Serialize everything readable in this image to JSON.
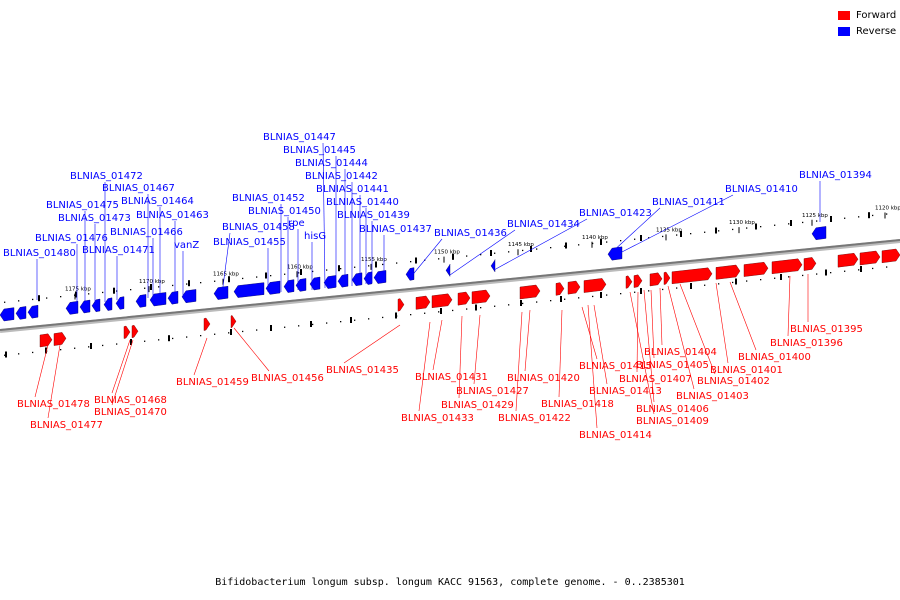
{
  "legend": {
    "forward_label": "Forward",
    "reverse_label": "Reverse",
    "forward_color": "#ff0000",
    "reverse_color": "#0000ff"
  },
  "caption": "Bifidobacterium longum subsp. longum KACC 91563, complete genome. - 0..2385301",
  "ticks": [
    "1175 kbp",
    "1170 kbp",
    "1165 kbp",
    "1160 kbp",
    "1155 kbp",
    "1150 kbp",
    "1145 kbp",
    "1140 kbp",
    "1135 kbp",
    "1130 kbp",
    "1125 kbp",
    "1120 kbp"
  ],
  "reverse_genes": [
    "BLNIAS_01480",
    "BLNIAS_01476",
    "BLNIAS_01475",
    "BLNIAS_01473",
    "BLNIAS_01472",
    "BLNIAS_01471",
    "BLNIAS_01467",
    "BLNIAS_01466",
    "BLNIAS_01464",
    "BLNIAS_01463",
    "vanZ",
    "BLNIAS_01458",
    "BLNIAS_01455",
    "BLNIAS_01452",
    "BLNIAS_01450",
    "rpe",
    "hisG",
    "BLNIAS_01447",
    "BLNIAS_01445",
    "BLNIAS_01444",
    "BLNIAS_01442",
    "BLNIAS_01441",
    "BLNIAS_01440",
    "BLNIAS_01439",
    "BLNIAS_01437",
    "BLNIAS_01436",
    "BLNIAS_01434",
    "BLNIAS_01423",
    "BLNIAS_01411",
    "BLNIAS_01410",
    "BLNIAS_01394"
  ],
  "forward_genes": [
    "BLNIAS_01478",
    "BLNIAS_01477",
    "BLNIAS_01468",
    "BLNIAS_01470",
    "BLNIAS_01459",
    "BLNIAS_01456",
    "BLNIAS_01435",
    "BLNIAS_01433",
    "BLNIAS_01431",
    "BLNIAS_01429",
    "BLNIAS_01427",
    "BLNIAS_01422",
    "BLNIAS_01420",
    "BLNIAS_01418",
    "BLNIAS_01415",
    "BLNIAS_01414",
    "BLNIAS_01413",
    "BLNIAS_01409",
    "BLNIAS_01407",
    "BLNIAS_01406",
    "BLNIAS_01405",
    "BLNIAS_01404",
    "BLNIAS_01403",
    "BLNIAS_01402",
    "BLNIAS_01401",
    "BLNIAS_01400",
    "BLNIAS_01396",
    "BLNIAS_01395"
  ]
}
